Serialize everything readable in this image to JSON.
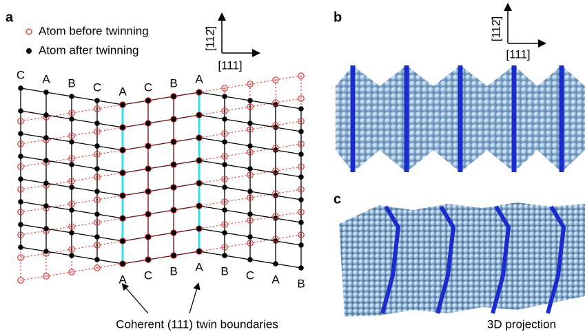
{
  "panels": {
    "a": "a",
    "b": "b",
    "c": "c"
  },
  "legend": [
    "Atom before twinning",
    "Atom after twinning"
  ],
  "axes": {
    "vertical": "[112̄]",
    "horizontal": "[111]"
  },
  "top_labels": [
    "C",
    "A",
    "B",
    "C",
    "A",
    "C",
    "B",
    "A"
  ],
  "bottom_labels": [
    "A",
    "C",
    "B",
    "A",
    "B",
    "C",
    "A",
    "B"
  ],
  "captions": {
    "a": "Coherent (111) twin boundaries",
    "bc": "3D projection"
  }
}
